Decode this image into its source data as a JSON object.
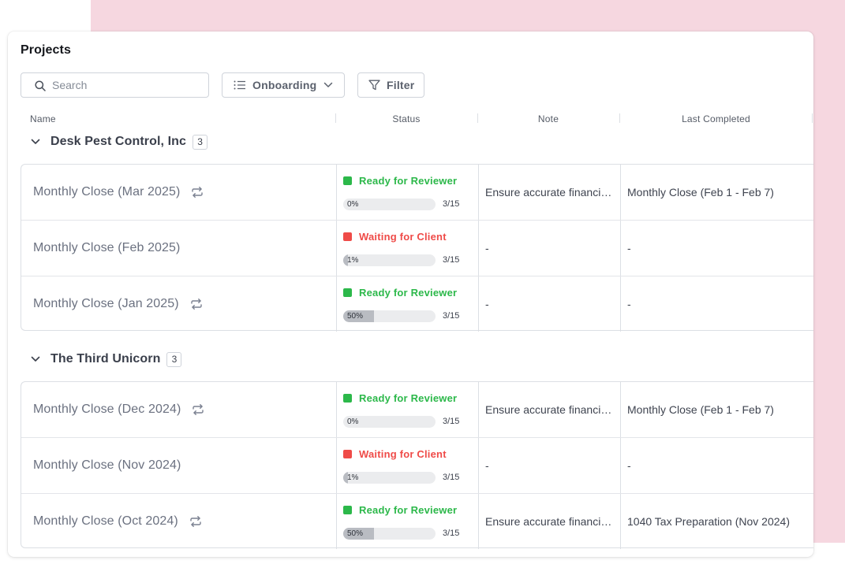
{
  "page": {
    "title": "Projects"
  },
  "toolbar": {
    "search_placeholder": "Search",
    "view_label": "Onboarding",
    "filter_label": "Filter"
  },
  "columns": {
    "name": "Name",
    "status": "Status",
    "note": "Note",
    "last_completed": "Last Completed"
  },
  "groups": [
    {
      "name": "Desk Pest Control, Inc",
      "count": "3",
      "rows": [
        {
          "name": "Monthly Close (Mar 2025)",
          "recurring": true,
          "status": "Ready for Reviewer",
          "status_type": "ready",
          "progress": 0,
          "progress_label": "0%",
          "ratio": "3/15",
          "note": "Ensure accurate financial records",
          "last_completed": "Monthly Close (Feb 1 - Feb 7)"
        },
        {
          "name": "Monthly Close (Feb 2025)",
          "recurring": false,
          "status": "Waiting for Client",
          "status_type": "waiting",
          "progress": 1,
          "progress_label": "1%",
          "ratio": "3/15",
          "note": "-",
          "last_completed": "-"
        },
        {
          "name": "Monthly Close (Jan 2025)",
          "recurring": true,
          "status": "Ready for Reviewer",
          "status_type": "ready",
          "progress": 50,
          "progress_label": "50%",
          "ratio": "3/15",
          "note": "-",
          "last_completed": "-"
        }
      ]
    },
    {
      "name": "The Third Unicorn",
      "count": "3",
      "rows": [
        {
          "name": "Monthly Close (Dec 2024)",
          "recurring": true,
          "status": "Ready for Reviewer",
          "status_type": "ready",
          "progress": 0,
          "progress_label": "0%",
          "ratio": "3/15",
          "note": "Ensure accurate financial records",
          "last_completed": "Monthly Close (Feb 1 - Feb 7)"
        },
        {
          "name": "Monthly Close (Nov 2024)",
          "recurring": false,
          "status": "Waiting for Client",
          "status_type": "waiting",
          "progress": 1,
          "progress_label": "1%",
          "ratio": "3/15",
          "note": "-",
          "last_completed": "-"
        },
        {
          "name": "Monthly Close (Oct 2024)",
          "recurring": true,
          "status": "Ready for Reviewer",
          "status_type": "ready",
          "progress": 50,
          "progress_label": "50%",
          "ratio": "3/15",
          "note": "Ensure accurate financial records",
          "last_completed": "1040 Tax Preparation (Nov 2024)"
        }
      ]
    }
  ],
  "colors": {
    "background_accent": "#f6d7e0",
    "ready": "#2cb84a",
    "waiting": "#ef4b48",
    "progress_fill": "#b9bcc2"
  },
  "icons": {
    "search": "search-icon",
    "view": "list-icon",
    "dropdown": "chevron-down-icon",
    "filter": "filter-icon",
    "group_toggle": "chevron-down-icon",
    "recurring": "repeat-icon"
  }
}
